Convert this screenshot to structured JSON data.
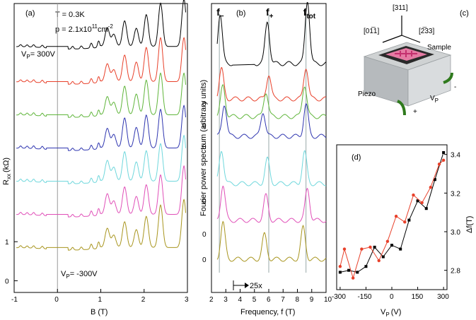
{
  "chart_data": [
    {
      "panel": "(a)",
      "type": "line",
      "annotation_T": "T = 0.3K",
      "annotation_p": "p = 2.1x10",
      "annotation_p_exp": "11",
      "annotation_p_unit": "cm",
      "annotation_p_unit_exp": "-2",
      "top_trace_label": "V",
      "top_trace_label_sub": "P",
      "top_trace_label_value": "= 300V",
      "bottom_trace_label": "V",
      "bottom_trace_label_sub": "P",
      "bottom_trace_label_value": "= -300V",
      "xlabel": "B (T)",
      "ylabel": "R",
      "ylabel_sub": "xx",
      "ylabel_unit": "(kΩ)",
      "xlim": [
        -1,
        3
      ],
      "ylim": [
        -0.3,
        7.1
      ],
      "xticks": [
        "-1",
        "0",
        "1",
        "2",
        "3"
      ],
      "yticks": [
        {
          "v": 0,
          "t": "0"
        },
        {
          "v": 1,
          "t": "1"
        }
      ],
      "vline_x": 0,
      "series": [
        {
          "color": "#000000",
          "offset": 6.0
        },
        {
          "color": "#e8402a",
          "offset": 5.1
        },
        {
          "color": "#5fb53a",
          "offset": 4.25
        },
        {
          "color": "#2e35b0",
          "offset": 3.4
        },
        {
          "color": "#6fd7dc",
          "offset": 2.55
        },
        {
          "color": "#e04fb8",
          "offset": 1.7
        },
        {
          "color": "#a8951e",
          "offset": 0.85
        }
      ],
      "peaks": [
        {
          "x": -0.85,
          "h": 0.1
        },
        {
          "x": -0.7,
          "h": 0.1
        },
        {
          "x": -0.55,
          "h": 0.12
        },
        {
          "x": -0.35,
          "h": 0.12
        },
        {
          "x": 0.35,
          "h": 0.12
        },
        {
          "x": 0.55,
          "h": 0.12
        },
        {
          "x": 0.78,
          "h": 0.22
        },
        {
          "x": 0.95,
          "h": 0.3
        },
        {
          "x": 1.15,
          "h": 0.9
        },
        {
          "x": 1.3,
          "h": 0.6
        },
        {
          "x": 1.55,
          "h": 1.3
        },
        {
          "x": 1.82,
          "h": 0.9
        },
        {
          "x": 2.05,
          "h": 1.5
        },
        {
          "x": 2.38,
          "h": 1.9
        },
        {
          "x": 2.92,
          "h": 2.1
        }
      ]
    },
    {
      "panel": "(b)",
      "type": "line",
      "ylabel": "Fourier power spectrum (arbitrary units)",
      "xlabel": "Frequency, f (T)",
      "xlim": [
        2,
        10
      ],
      "xticks": [
        "2",
        "3",
        "4",
        "5",
        "6",
        "7",
        "8",
        "9",
        "10"
      ],
      "peak_labels": [
        {
          "text": "f",
          "sub": "−",
          "x": 2.55
        },
        {
          "text": "f",
          "sub": "+",
          "x": 6.0
        },
        {
          "text": "f",
          "sub": "tot",
          "x": 8.6
        }
      ],
      "zero_labels": [
        "0",
        "0",
        "0",
        "0",
        "0",
        "0"
      ],
      "scale_note": "25x",
      "vlines": [
        2.55,
        6.0,
        8.6
      ],
      "series": [
        {
          "color": "#000000",
          "peaks": [
            2.6,
            5.9,
            8.7
          ]
        },
        {
          "color": "#e8402a",
          "peaks": [
            2.7,
            6.0,
            8.6
          ]
        },
        {
          "color": "#5fb53a",
          "peaks": [
            2.8,
            5.8,
            8.5
          ]
        },
        {
          "color": "#2e35b0",
          "peaks": [
            2.9,
            5.6,
            8.6
          ]
        },
        {
          "color": "#6fd7dc",
          "peaks": [
            2.7,
            5.9,
            8.5
          ]
        },
        {
          "color": "#e04fb8",
          "peaks": [
            2.8,
            5.8,
            8.7
          ]
        },
        {
          "color": "#a8951e",
          "peaks": [
            2.8,
            5.7,
            8.4
          ]
        }
      ]
    },
    {
      "panel": "(c)",
      "type": "diagram",
      "axis_labels": {
        "top": "[311]",
        "left": "[01̅1]",
        "right": "[2̅33]"
      },
      "labels": {
        "sample": "Sample",
        "piezo": "Piezo",
        "vp": "V",
        "vp_sub": "P",
        "plus": "+",
        "minus": "-"
      }
    },
    {
      "panel": "(d)",
      "type": "line",
      "xlabel": "V",
      "xlabel_sub": "P",
      "xlabel_unit": "(V)",
      "ylabel": "Δf(T)",
      "xlim": [
        -320,
        320
      ],
      "ylim": [
        2.7,
        3.45
      ],
      "xticks": [
        -300,
        -150,
        0,
        150,
        300
      ],
      "yticks": [
        2.8,
        3.0,
        3.2,
        3.4
      ],
      "ytick_labels": [
        "2.8",
        "3.0",
        "3.2",
        "3.4"
      ],
      "series": [
        {
          "color": "#000000",
          "marker": "square",
          "x": [
            -300,
            -250,
            -200,
            -150,
            -100,
            -50,
            0,
            50,
            100,
            150,
            200,
            250,
            300
          ],
          "y": [
            2.79,
            2.8,
            2.79,
            2.82,
            2.92,
            2.87,
            2.93,
            2.91,
            3.06,
            3.16,
            3.12,
            3.27,
            3.41
          ]
        },
        {
          "color": "#e8402a",
          "marker": "circle",
          "x": [
            -300,
            -275,
            -225,
            -175,
            -125,
            -75,
            -25,
            25,
            75,
            125,
            175,
            225,
            275,
            300
          ],
          "y": [
            2.82,
            2.91,
            2.76,
            2.91,
            2.92,
            2.85,
            2.95,
            3.08,
            3.05,
            3.19,
            3.15,
            3.23,
            3.35,
            3.37
          ]
        }
      ]
    }
  ]
}
